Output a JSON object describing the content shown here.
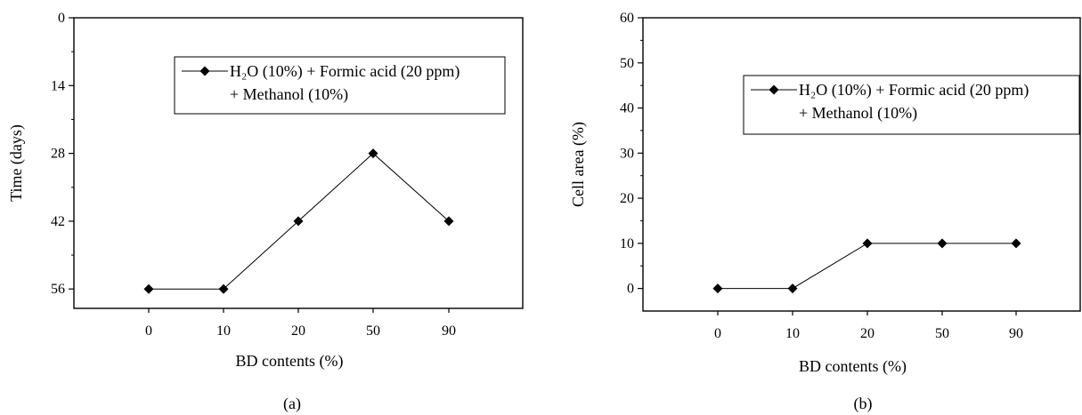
{
  "chart_data": [
    {
      "type": "line",
      "caption": "(a)",
      "xlabel": "BD contents (%)",
      "ylabel": "Time (days)",
      "categories": [
        "0",
        "10",
        "20",
        "50",
        "90"
      ],
      "yticks": [
        "0",
        "14",
        "28",
        "42",
        "56"
      ],
      "ylim": [
        0,
        60
      ],
      "y_inverted": true,
      "series": [
        {
          "name_line1": "H₂O (10%) + Formic acid (20 ppm)",
          "name_line2": "+ Methanol (10%)",
          "values": [
            56,
            56,
            42,
            28,
            42
          ]
        }
      ],
      "marker": "diamond",
      "color": "#000000",
      "legend": "top-right",
      "grid": false
    },
    {
      "type": "line",
      "caption": "(b)",
      "xlabel": "BD contents (%)",
      "ylabel": "Cell area (%)",
      "categories": [
        "0",
        "10",
        "20",
        "50",
        "90"
      ],
      "yticks": [
        "0",
        "10",
        "20",
        "30",
        "40",
        "50",
        "60"
      ],
      "ylim": [
        -5,
        60
      ],
      "y_inverted": false,
      "series": [
        {
          "name_line1": "H₂O (10%) + Formic acid (20 ppm)",
          "name_line2": "+ Methanol (10%)",
          "values": [
            0,
            0,
            10,
            10,
            10
          ]
        }
      ],
      "marker": "diamond",
      "color": "#000000",
      "legend": "top-right",
      "grid": false
    }
  ]
}
